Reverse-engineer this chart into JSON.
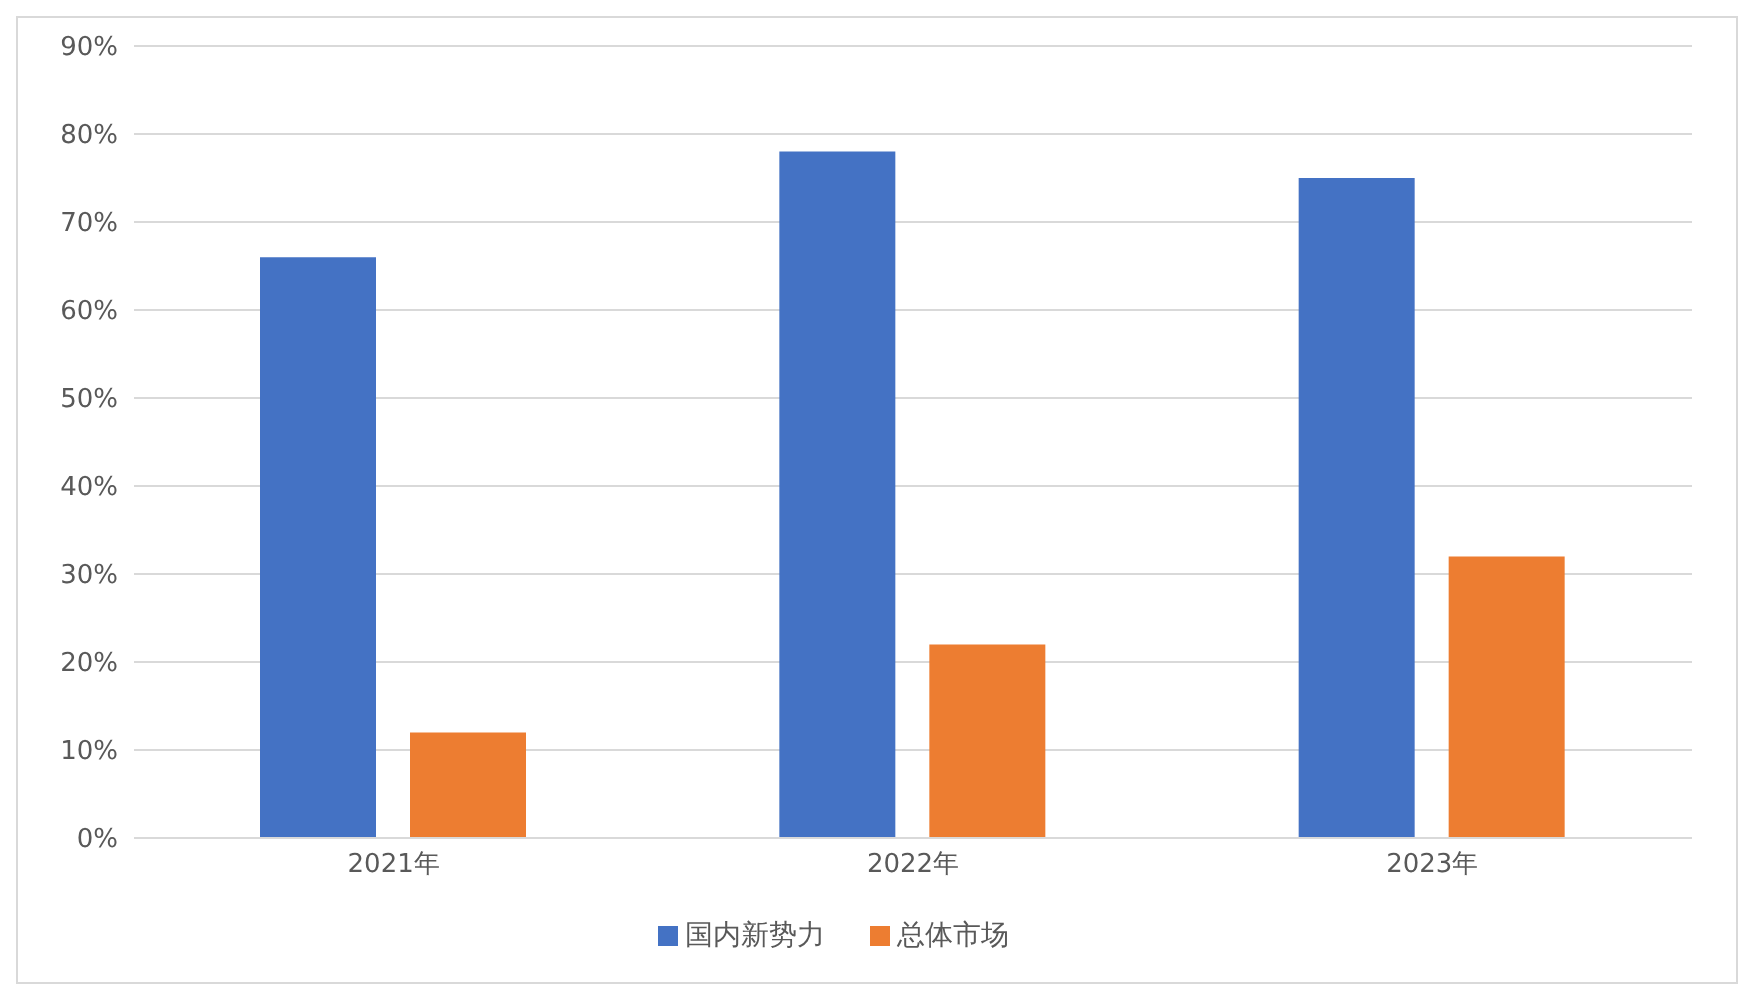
{
  "chart_data": {
    "type": "bar",
    "categories": [
      "2021年",
      "2022年",
      "2023年"
    ],
    "series": [
      {
        "name": "国内新势力",
        "color": "#4472c4",
        "values": [
          66,
          78,
          75
        ]
      },
      {
        "name": "总体市场",
        "color": "#ed7d31",
        "values": [
          12,
          22,
          32
        ]
      }
    ],
    "ylim": [
      0,
      90
    ],
    "yticks": [
      {
        "value": 0,
        "label": "0%"
      },
      {
        "value": 10,
        "label": "10%"
      },
      {
        "value": 20,
        "label": "20%"
      },
      {
        "value": 30,
        "label": "30%"
      },
      {
        "value": 40,
        "label": "40%"
      },
      {
        "value": 50,
        "label": "50%"
      },
      {
        "value": 60,
        "label": "60%"
      },
      {
        "value": 70,
        "label": "70%"
      },
      {
        "value": 80,
        "label": "80%"
      },
      {
        "value": 90,
        "label": "90%"
      }
    ],
    "grid": "y",
    "legend": "bottom"
  }
}
